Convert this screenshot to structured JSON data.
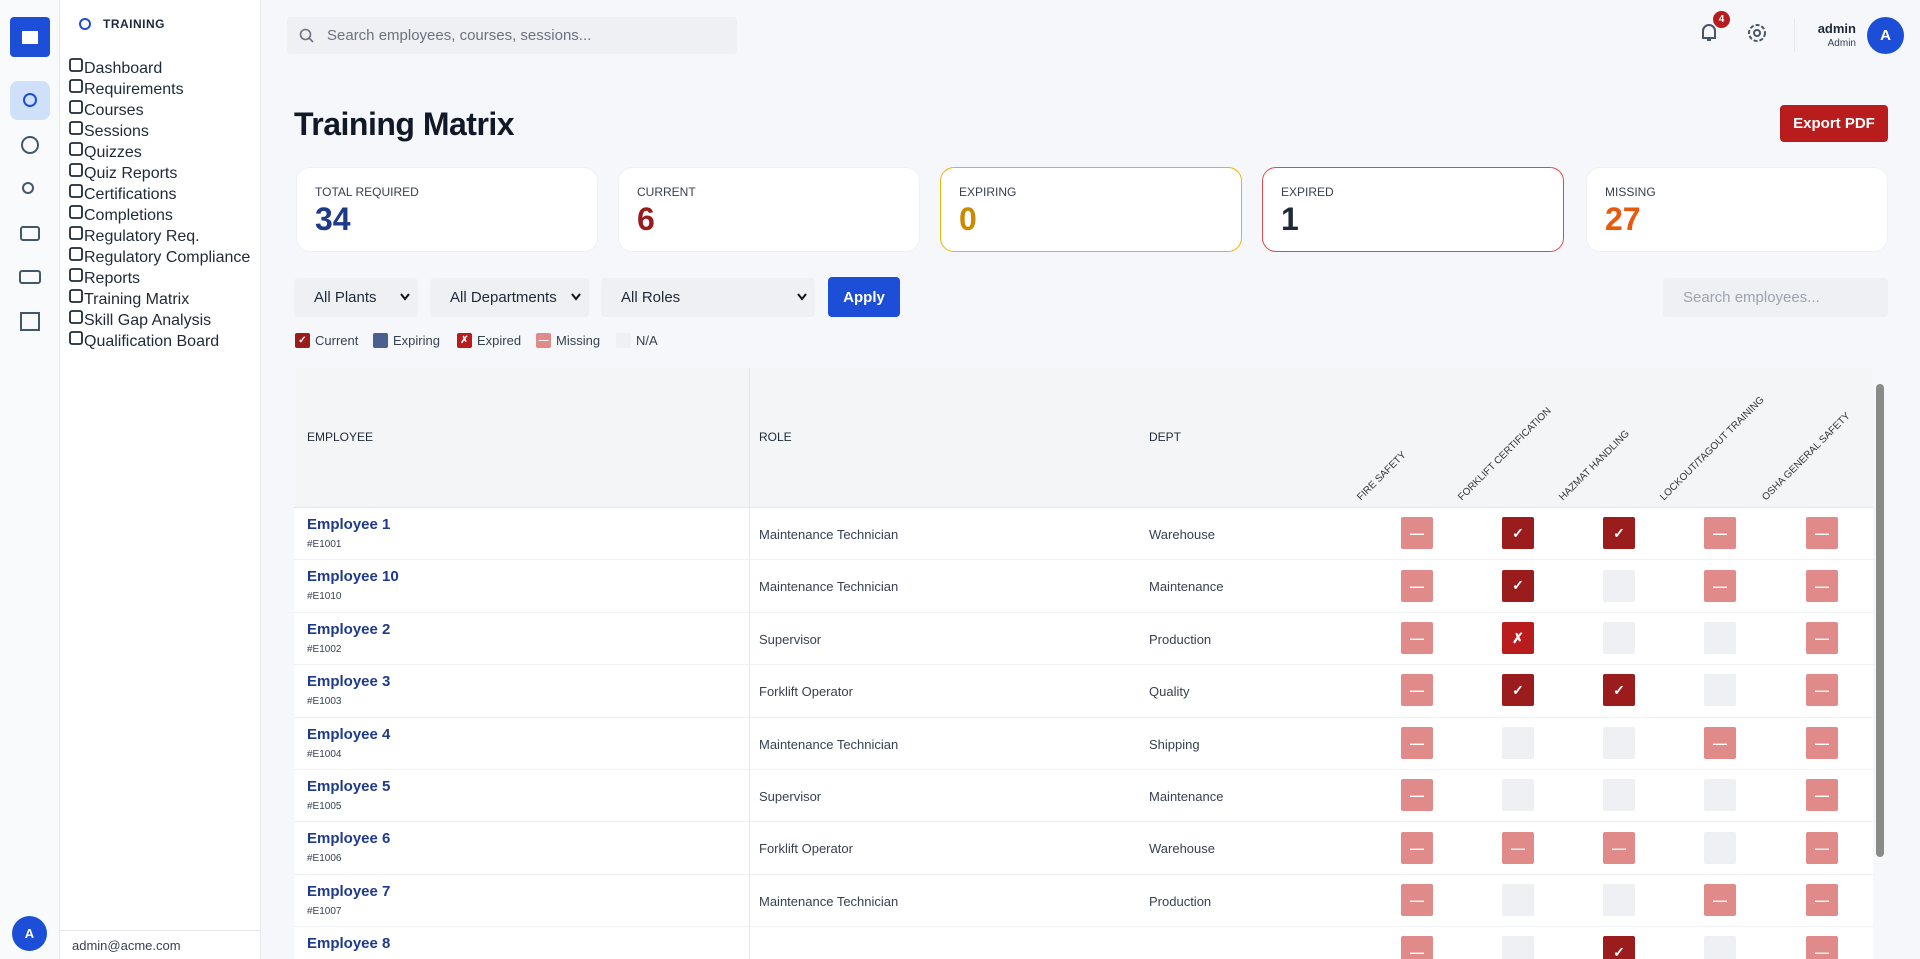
{
  "rail": {
    "avatar": "A"
  },
  "sidebar": {
    "section": "TRAINING",
    "nav": [
      {
        "label": "Dashboard"
      },
      {
        "label": "Requirements"
      },
      {
        "label": "Courses"
      },
      {
        "label": "Sessions"
      },
      {
        "label": "Quizzes"
      },
      {
        "label": "Quiz Reports"
      },
      {
        "label": "Certifications"
      },
      {
        "label": "Completions"
      },
      {
        "label": "Regulatory Req."
      },
      {
        "label": "Regulatory Compliance"
      },
      {
        "label": "Reports"
      },
      {
        "label": "Training Matrix",
        "active": true
      },
      {
        "label": "Skill Gap Analysis"
      },
      {
        "label": "Qualification Board"
      }
    ],
    "footer": "admin@acme.com"
  },
  "topbar": {
    "search_placeholder": "Search employees, courses, sessions...",
    "notifications": 4,
    "user_name": "admin",
    "user_role": "Admin",
    "avatar": "A"
  },
  "header": {
    "title": "Training Matrix",
    "export_button": "Export PDF"
  },
  "stats": [
    {
      "label": "TOTAL REQUIRED",
      "value": 34,
      "color": "#1e3a8a"
    },
    {
      "label": "CURRENT",
      "value": 6,
      "color": "#991b1b"
    },
    {
      "label": "EXPIRING",
      "value": 0,
      "color": "#ca8a04",
      "border": "#eab308"
    },
    {
      "label": "EXPIRED",
      "value": 1,
      "color": "#1f2937",
      "border": "#dc4a4a"
    },
    {
      "label": "MISSING",
      "value": 27,
      "color": "#ea580c"
    }
  ],
  "filters": {
    "plants": "All Plants",
    "departments": "All Departments",
    "roles": "All Roles",
    "apply": "Apply",
    "search_placeholder": "Search employees..."
  },
  "status_colors": {
    "current": "#9b1c1c",
    "expiring": "#4a6190",
    "expired": "#b91c1c",
    "missing": "#e08a8a",
    "na": "#eef0f3"
  },
  "legend": [
    {
      "status": "current",
      "symbol": "✓",
      "label": "Current"
    },
    {
      "status": "expiring",
      "label": "Expiring"
    },
    {
      "status": "expired",
      "symbol": "✗",
      "label": "Expired"
    },
    {
      "status": "missing",
      "symbol": "—",
      "label": "Missing"
    },
    {
      "status": "na",
      "label": "N/A"
    }
  ],
  "table": {
    "columns": {
      "employee": "EMPLOYEE",
      "role": "ROLE",
      "dept": "DEPT"
    },
    "courses": [
      "FIRE SAFETY",
      "FORKLIFT CERTIFICATION",
      "HAZMAT HANDLING",
      "LOCKOUT/TAGOUT TRAINING",
      "OSHA GENERAL SAFETY"
    ],
    "rows": [
      {
        "name": "Employee 1",
        "id": "#E1001",
        "role": "Maintenance Technician",
        "dept": "Warehouse",
        "cells": [
          {
            "status": "missing",
            "symbol": "—"
          },
          {
            "status": "current",
            "symbol": "✓"
          },
          {
            "status": "current",
            "symbol": "✓"
          },
          {
            "status": "missing",
            "symbol": "—"
          },
          {
            "status": "missing",
            "symbol": "—"
          }
        ]
      },
      {
        "name": "Employee 10",
        "id": "#E1010",
        "role": "Maintenance Technician",
        "dept": "Maintenance",
        "cells": [
          {
            "status": "missing",
            "symbol": "—"
          },
          {
            "status": "current",
            "symbol": "✓"
          },
          {
            "status": "na"
          },
          {
            "status": "missing",
            "symbol": "—"
          },
          {
            "status": "missing",
            "symbol": "—"
          }
        ]
      },
      {
        "name": "Employee 2",
        "id": "#E1002",
        "role": "Supervisor",
        "dept": "Production",
        "cells": [
          {
            "status": "missing",
            "symbol": "—"
          },
          {
            "status": "expired",
            "symbol": "✗"
          },
          {
            "status": "na"
          },
          {
            "status": "na"
          },
          {
            "status": "missing",
            "symbol": "—"
          }
        ]
      },
      {
        "name": "Employee 3",
        "id": "#E1003",
        "role": "Forklift Operator",
        "dept": "Quality",
        "cells": [
          {
            "status": "missing",
            "symbol": "—"
          },
          {
            "status": "current",
            "symbol": "✓"
          },
          {
            "status": "current",
            "symbol": "✓"
          },
          {
            "status": "na"
          },
          {
            "status": "missing",
            "symbol": "—"
          }
        ]
      },
      {
        "name": "Employee 4",
        "id": "#E1004",
        "role": "Maintenance Technician",
        "dept": "Shipping",
        "cells": [
          {
            "status": "missing",
            "symbol": "—"
          },
          {
            "status": "na"
          },
          {
            "status": "na"
          },
          {
            "status": "missing",
            "symbol": "—"
          },
          {
            "status": "missing",
            "symbol": "—"
          }
        ]
      },
      {
        "name": "Employee 5",
        "id": "#E1005",
        "role": "Supervisor",
        "dept": "Maintenance",
        "cells": [
          {
            "status": "missing",
            "symbol": "—"
          },
          {
            "status": "na"
          },
          {
            "status": "na"
          },
          {
            "status": "na"
          },
          {
            "status": "missing",
            "symbol": "—"
          }
        ]
      },
      {
        "name": "Employee 6",
        "id": "#E1006",
        "role": "Forklift Operator",
        "dept": "Warehouse",
        "cells": [
          {
            "status": "missing",
            "symbol": "—"
          },
          {
            "status": "missing",
            "symbol": "—"
          },
          {
            "status": "missing",
            "symbol": "—"
          },
          {
            "status": "na"
          },
          {
            "status": "missing",
            "symbol": "—"
          }
        ]
      },
      {
        "name": "Employee 7",
        "id": "#E1007",
        "role": "Maintenance Technician",
        "dept": "Production",
        "cells": [
          {
            "status": "missing",
            "symbol": "—"
          },
          {
            "status": "na"
          },
          {
            "status": "na"
          },
          {
            "status": "missing",
            "symbol": "—"
          },
          {
            "status": "missing",
            "symbol": "—"
          }
        ]
      },
      {
        "name": "Employee 8",
        "cells": [
          {
            "status": "missing",
            "symbol": "—"
          },
          {
            "status": "na"
          },
          {
            "status": "current",
            "symbol": "✓"
          },
          {
            "status": "na"
          },
          {
            "status": "missing",
            "symbol": "—"
          }
        ]
      }
    ]
  }
}
